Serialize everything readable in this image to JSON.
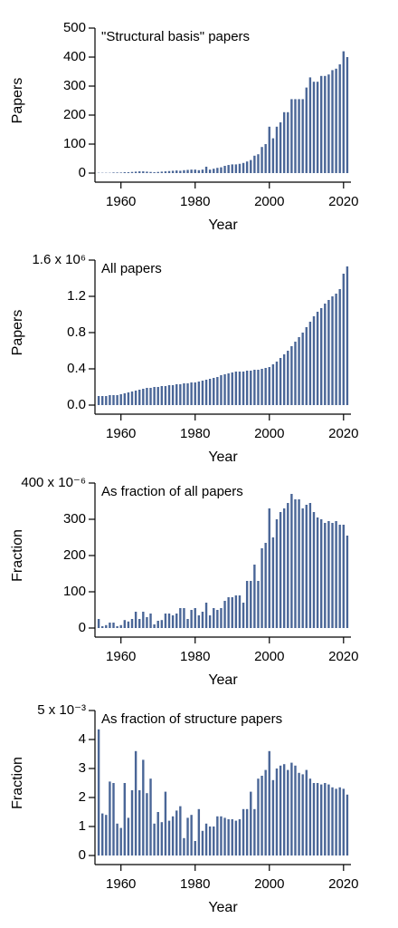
{
  "chart_data": [
    {
      "type": "bar",
      "title": "\"Structural basis\" papers",
      "xlabel": "Year",
      "ylabel": "Papers",
      "color": "#4a6697",
      "x": [
        1954,
        1955,
        1956,
        1957,
        1958,
        1959,
        1960,
        1961,
        1962,
        1963,
        1964,
        1965,
        1966,
        1967,
        1968,
        1969,
        1970,
        1971,
        1972,
        1973,
        1974,
        1975,
        1976,
        1977,
        1978,
        1979,
        1980,
        1981,
        1982,
        1983,
        1984,
        1985,
        1986,
        1987,
        1988,
        1989,
        1990,
        1991,
        1992,
        1993,
        1994,
        1995,
        1996,
        1997,
        1998,
        1999,
        2000,
        2001,
        2002,
        2003,
        2004,
        2005,
        2006,
        2007,
        2008,
        2009,
        2010,
        2011,
        2012,
        2013,
        2014,
        2015,
        2016,
        2017,
        2018,
        2019,
        2020,
        2021
      ],
      "values": [
        1,
        1,
        1,
        1,
        2,
        2,
        2,
        3,
        3,
        4,
        5,
        6,
        6,
        5,
        4,
        3,
        4,
        5,
        6,
        7,
        8,
        9,
        8,
        10,
        11,
        12,
        12,
        10,
        12,
        22,
        12,
        15,
        18,
        20,
        25,
        28,
        30,
        30,
        32,
        35,
        40,
        45,
        60,
        65,
        90,
        100,
        160,
        120,
        160,
        175,
        210,
        210,
        255,
        255,
        255,
        255,
        295,
        330,
        315,
        315,
        335,
        335,
        340,
        355,
        360,
        375,
        420,
        400
      ],
      "xlim": [
        1953,
        2022
      ],
      "xticks": [
        1960,
        1980,
        2000,
        2020
      ],
      "ylim": [
        0,
        500
      ],
      "yticks": [
        0,
        100,
        200,
        300,
        400,
        500
      ]
    },
    {
      "type": "bar",
      "title": "All papers",
      "xlabel": "Year",
      "ylabel": "Papers",
      "color": "#4a6697",
      "x": [
        1954,
        1955,
        1956,
        1957,
        1958,
        1959,
        1960,
        1961,
        1962,
        1963,
        1964,
        1965,
        1966,
        1967,
        1968,
        1969,
        1970,
        1971,
        1972,
        1973,
        1974,
        1975,
        1976,
        1977,
        1978,
        1979,
        1980,
        1981,
        1982,
        1983,
        1984,
        1985,
        1986,
        1987,
        1988,
        1989,
        1990,
        1991,
        1992,
        1993,
        1994,
        1995,
        1996,
        1997,
        1998,
        1999,
        2000,
        2001,
        2002,
        2003,
        2004,
        2005,
        2006,
        2007,
        2008,
        2009,
        2010,
        2011,
        2012,
        2013,
        2014,
        2015,
        2016,
        2017,
        2018,
        2019,
        2020,
        2021
      ],
      "values": [
        0.1,
        0.1,
        0.1,
        0.11,
        0.11,
        0.11,
        0.12,
        0.13,
        0.14,
        0.15,
        0.16,
        0.17,
        0.18,
        0.19,
        0.19,
        0.2,
        0.2,
        0.21,
        0.21,
        0.22,
        0.22,
        0.23,
        0.23,
        0.24,
        0.24,
        0.25,
        0.25,
        0.26,
        0.27,
        0.28,
        0.29,
        0.3,
        0.31,
        0.33,
        0.34,
        0.35,
        0.36,
        0.37,
        0.37,
        0.37,
        0.38,
        0.38,
        0.39,
        0.39,
        0.4,
        0.41,
        0.42,
        0.45,
        0.48,
        0.52,
        0.56,
        0.6,
        0.65,
        0.7,
        0.75,
        0.8,
        0.86,
        0.92,
        0.98,
        1.03,
        1.07,
        1.12,
        1.16,
        1.2,
        1.23,
        1.28,
        1.45,
        1.53
      ],
      "xlim": [
        1953,
        2022
      ],
      "xticks": [
        1960,
        1980,
        2000,
        2020
      ],
      "ylim": [
        0,
        1.6
      ],
      "yticks": [
        {
          "value": 0,
          "label": "0.0"
        },
        0.4,
        0.8,
        1.2,
        {
          "value": 1.6,
          "label": "1.6 x 10⁶"
        }
      ]
    },
    {
      "type": "bar",
      "title": "As fraction of all papers",
      "xlabel": "Year",
      "ylabel": "Fraction",
      "color": "#4a6697",
      "x": [
        1954,
        1955,
        1956,
        1957,
        1958,
        1959,
        1960,
        1961,
        1962,
        1963,
        1964,
        1965,
        1966,
        1967,
        1968,
        1969,
        1970,
        1971,
        1972,
        1973,
        1974,
        1975,
        1976,
        1977,
        1978,
        1979,
        1980,
        1981,
        1982,
        1983,
        1984,
        1985,
        1986,
        1987,
        1988,
        1989,
        1990,
        1991,
        1992,
        1993,
        1994,
        1995,
        1996,
        1997,
        1998,
        1999,
        2000,
        2001,
        2002,
        2003,
        2004,
        2005,
        2006,
        2007,
        2008,
        2009,
        2010,
        2011,
        2012,
        2013,
        2014,
        2015,
        2016,
        2017,
        2018,
        2019,
        2020,
        2021
      ],
      "values": [
        25,
        5,
        8,
        15,
        15,
        5,
        8,
        22,
        18,
        25,
        45,
        25,
        45,
        30,
        40,
        10,
        20,
        22,
        40,
        40,
        35,
        40,
        55,
        55,
        25,
        50,
        55,
        35,
        45,
        70,
        35,
        55,
        50,
        55,
        75,
        85,
        85,
        90,
        90,
        70,
        130,
        130,
        175,
        130,
        220,
        235,
        330,
        250,
        300,
        320,
        330,
        345,
        370,
        355,
        355,
        330,
        340,
        345,
        320,
        305,
        300,
        290,
        295,
        290,
        295,
        285,
        285,
        255
      ],
      "xlim": [
        1953,
        2022
      ],
      "xticks": [
        1960,
        1980,
        2000,
        2020
      ],
      "ylim": [
        0,
        400
      ],
      "yticks": [
        0,
        100,
        200,
        300,
        {
          "value": 400,
          "label": "400 x 10⁻⁶"
        }
      ]
    },
    {
      "type": "bar",
      "title": "As fraction of structure papers",
      "xlabel": "Year",
      "ylabel": "Fraction",
      "color": "#4a6697",
      "x": [
        1954,
        1955,
        1956,
        1957,
        1958,
        1959,
        1960,
        1961,
        1962,
        1963,
        1964,
        1965,
        1966,
        1967,
        1968,
        1969,
        1970,
        1971,
        1972,
        1973,
        1974,
        1975,
        1976,
        1977,
        1978,
        1979,
        1980,
        1981,
        1982,
        1983,
        1984,
        1985,
        1986,
        1987,
        1988,
        1989,
        1990,
        1991,
        1992,
        1993,
        1994,
        1995,
        1996,
        1997,
        1998,
        1999,
        2000,
        2001,
        2002,
        2003,
        2004,
        2005,
        2006,
        2007,
        2008,
        2009,
        2010,
        2011,
        2012,
        2013,
        2014,
        2015,
        2016,
        2017,
        2018,
        2019,
        2020,
        2021
      ],
      "values": [
        4.35,
        1.45,
        1.4,
        2.55,
        2.5,
        1.1,
        0.95,
        2.5,
        1.3,
        2.25,
        3.6,
        2.25,
        3.3,
        2.15,
        2.65,
        1.1,
        1.5,
        1.15,
        2.2,
        1.2,
        1.35,
        1.55,
        1.7,
        0.6,
        1.3,
        1.4,
        0.5,
        1.6,
        0.85,
        1.1,
        1.0,
        1.0,
        1.35,
        1.35,
        1.3,
        1.25,
        1.25,
        1.2,
        1.25,
        1.6,
        1.6,
        2.2,
        1.6,
        2.65,
        2.75,
        2.95,
        3.6,
        2.6,
        3.0,
        3.1,
        3.15,
        2.95,
        3.2,
        3.1,
        2.85,
        2.8,
        2.95,
        2.65,
        2.5,
        2.5,
        2.45,
        2.5,
        2.45,
        2.35,
        2.3,
        2.35,
        2.3,
        2.1
      ],
      "xlim": [
        1953,
        2022
      ],
      "xticks": [
        1960,
        1980,
        2000,
        2020
      ],
      "ylim": [
        0,
        5
      ],
      "yticks": [
        0,
        1,
        2,
        3,
        4,
        {
          "value": 5,
          "label": "5 x 10⁻³"
        }
      ]
    }
  ]
}
